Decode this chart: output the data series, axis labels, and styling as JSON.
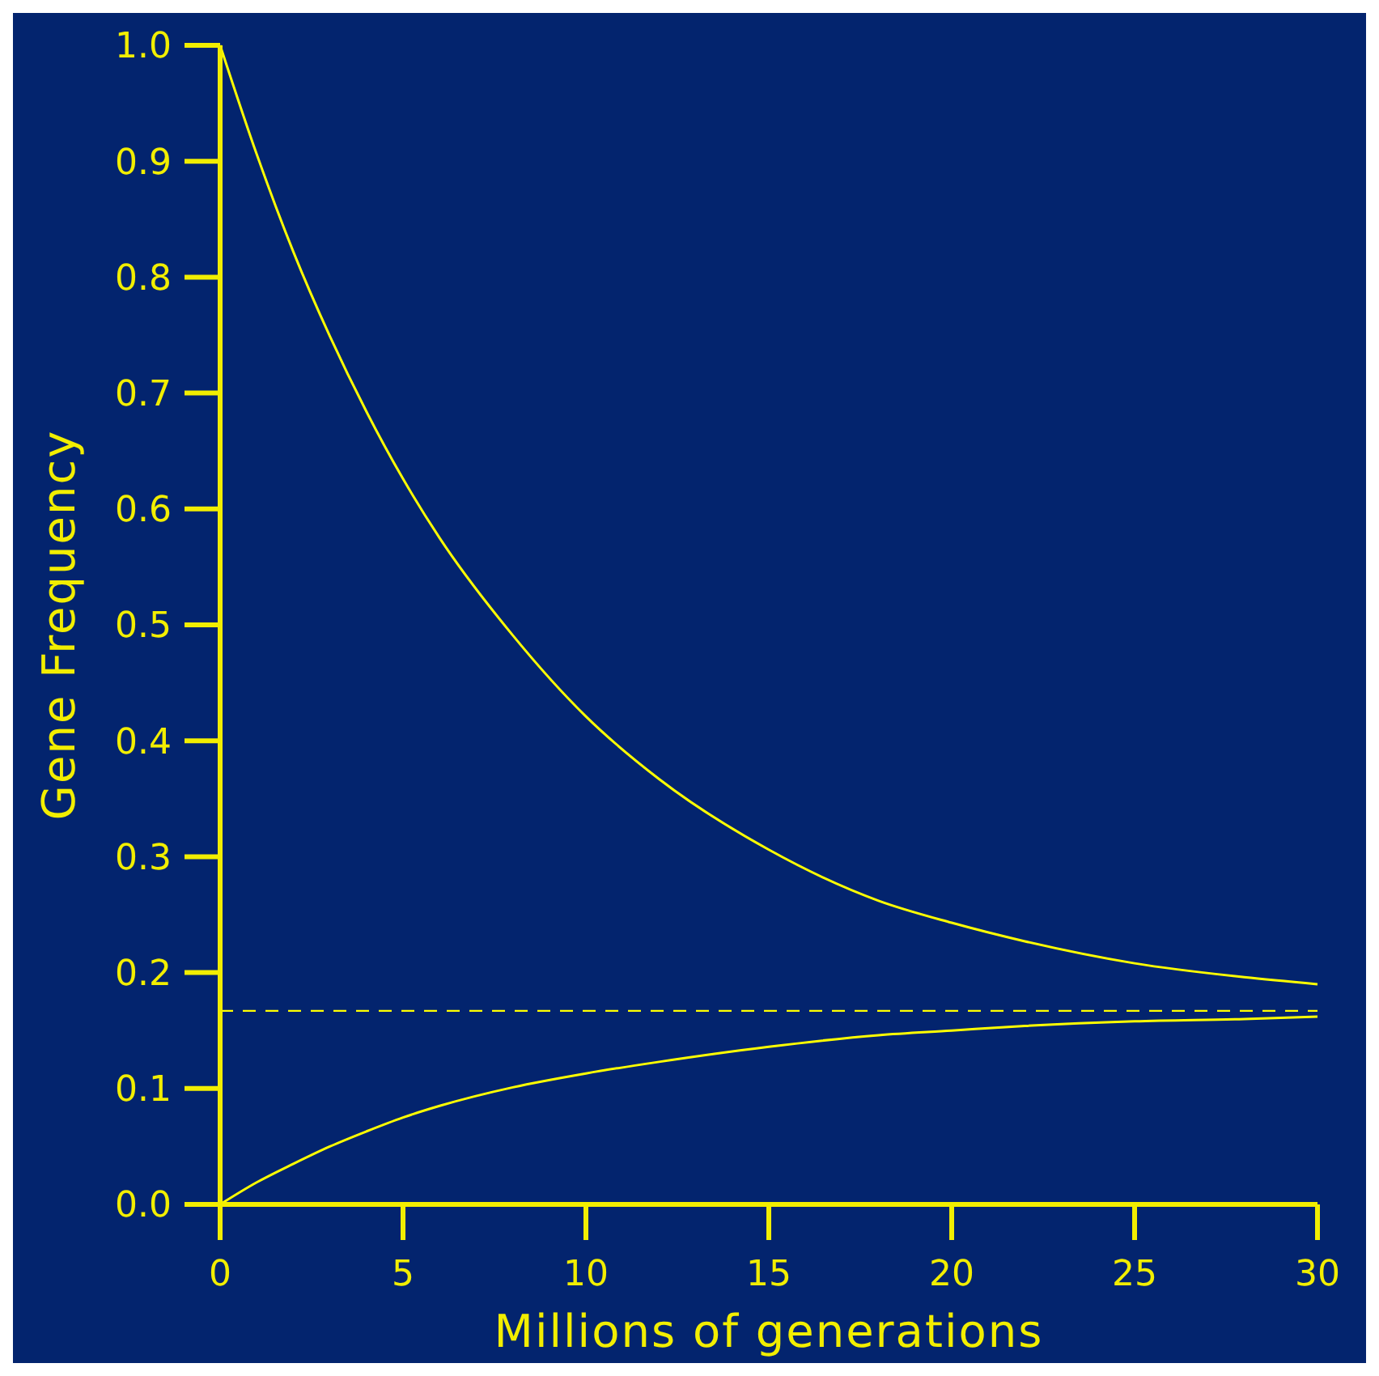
{
  "chart_data": {
    "type": "line",
    "xlabel": "Millions of generations",
    "ylabel": "Gene Frequency",
    "series": [
      {
        "color": "#ffff00",
        "x": [
          0,
          1,
          2,
          3,
          4,
          5,
          6,
          8,
          10,
          12,
          15,
          18,
          20,
          22,
          25,
          28,
          30
        ],
        "values": [
          1.0,
          0.906,
          0.822,
          0.749,
          0.684,
          0.626,
          0.575,
          0.491,
          0.421,
          0.367,
          0.306,
          0.262,
          0.243,
          0.227,
          0.208,
          0.196,
          0.19
        ]
      },
      {
        "color": "#ffff00",
        "x": [
          0,
          1,
          2,
          3,
          4,
          5,
          6,
          8,
          10,
          12,
          15,
          18,
          20,
          22,
          25,
          28,
          30
        ],
        "values": [
          0.0,
          0.019,
          0.035,
          0.05,
          0.063,
          0.075,
          0.085,
          0.101,
          0.113,
          0.123,
          0.136,
          0.146,
          0.15,
          0.154,
          0.158,
          0.16,
          0.162
        ]
      }
    ],
    "xlim": [
      0,
      30
    ],
    "xticks": [
      0,
      5,
      10,
      15,
      20,
      25,
      30
    ],
    "ylim": [
      0,
      1
    ],
    "yticks": [
      {
        "value": 0,
        "label": "0.0"
      },
      0.1,
      0.2,
      0.3,
      0.4,
      0.5,
      0.6,
      0.7,
      0.8,
      0.9,
      {
        "value": 1,
        "label": "1.0"
      }
    ],
    "ref_lines": [
      {
        "axis": "y",
        "value": 0.167,
        "color": "#ffff00",
        "line_style": "dashed"
      }
    ],
    "grid": false,
    "marker": "none",
    "line_style": "solid"
  }
}
